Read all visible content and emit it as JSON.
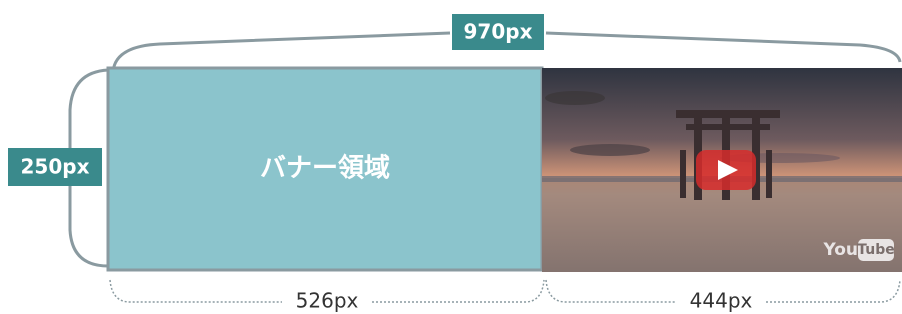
{
  "top_label": "970px",
  "left_label": "250px",
  "banner": {
    "label": "バナー領域"
  },
  "bottom_labels": [
    "526px",
    "444px"
  ],
  "video": {
    "logo": [
      "You",
      "Tube"
    ]
  }
}
